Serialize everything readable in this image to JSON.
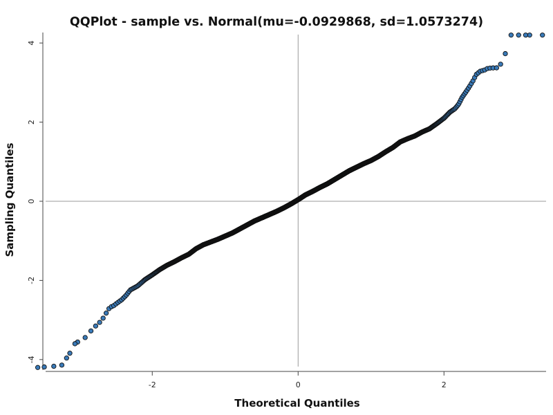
{
  "chart_data": {
    "type": "scatter",
    "title": "QQPlot - sample vs. Normal(mu=-0.0929868, sd=1.0573274)",
    "xlabel": "Theoretical Quantiles",
    "ylabel": "Sampling Quantiles",
    "xlim": [
      -3.5,
      3.4
    ],
    "ylim": [
      -4.3,
      4.3
    ],
    "xticks": [
      -2,
      0,
      2
    ],
    "yticks": [
      -4,
      -2,
      0,
      2,
      4
    ],
    "grid": false,
    "reference_lines": [
      {
        "axis": "x",
        "value": 0
      },
      {
        "axis": "y",
        "value": 0
      }
    ],
    "colors": {
      "point_fill": "#3a7ab8",
      "point_stroke": "#111111",
      "reference_line": "#999999",
      "axis": "#444444"
    },
    "series": [
      {
        "n_points": 2000,
        "x": [
          -3.57,
          -3.35,
          -3.24,
          -3.13,
          -3.06,
          -3.0,
          -2.96,
          -2.91,
          -2.87,
          -2.83,
          -2.8,
          -2.77,
          -2.73,
          -2.69,
          -2.65,
          -2.62,
          -2.58,
          -2.53,
          -2.48,
          -2.42,
          -2.36,
          -2.3,
          -2.2,
          -2.1,
          -2.0,
          -1.9,
          -1.8,
          -1.7,
          -1.6,
          -1.5,
          -1.4,
          -1.3,
          -1.2,
          -1.1,
          -1.0,
          -0.9,
          -0.8,
          -0.7,
          -0.6,
          -0.5,
          -0.4,
          -0.3,
          -0.2,
          -0.1,
          0.0,
          0.1,
          0.2,
          0.3,
          0.4,
          0.5,
          0.6,
          0.7,
          0.8,
          0.9,
          1.0,
          1.1,
          1.2,
          1.3,
          1.4,
          1.5,
          1.6,
          1.7,
          1.8,
          1.9,
          2.0,
          2.08,
          2.15,
          2.2,
          2.25,
          2.3,
          2.35,
          2.4,
          2.44,
          2.5,
          2.55,
          2.6,
          2.66,
          2.72,
          2.78,
          2.85,
          2.92,
          3.0,
          3.12,
          3.35
        ],
        "y": [
          -4.2,
          -4.17,
          -4.14,
          -3.84,
          -3.6,
          -3.53,
          -3.5,
          -3.43,
          -3.35,
          -3.25,
          -3.2,
          -3.14,
          -3.08,
          -2.99,
          -2.9,
          -2.78,
          -2.68,
          -2.64,
          -2.57,
          -2.49,
          -2.38,
          -2.24,
          -2.14,
          -1.98,
          -1.86,
          -1.73,
          -1.62,
          -1.53,
          -1.43,
          -1.34,
          -1.2,
          -1.1,
          -1.03,
          -0.96,
          -0.88,
          -0.8,
          -0.7,
          -0.6,
          -0.5,
          -0.42,
          -0.34,
          -0.26,
          -0.17,
          -0.07,
          0.04,
          0.16,
          0.25,
          0.35,
          0.44,
          0.55,
          0.66,
          0.77,
          0.86,
          0.95,
          1.03,
          1.13,
          1.25,
          1.36,
          1.5,
          1.58,
          1.65,
          1.75,
          1.83,
          1.96,
          2.1,
          2.25,
          2.34,
          2.45,
          2.63,
          2.76,
          2.9,
          3.05,
          3.2,
          3.29,
          3.31,
          3.36,
          3.37,
          3.37,
          3.47,
          3.77,
          4.2,
          4.2,
          4.2,
          4.2
        ]
      }
    ]
  }
}
